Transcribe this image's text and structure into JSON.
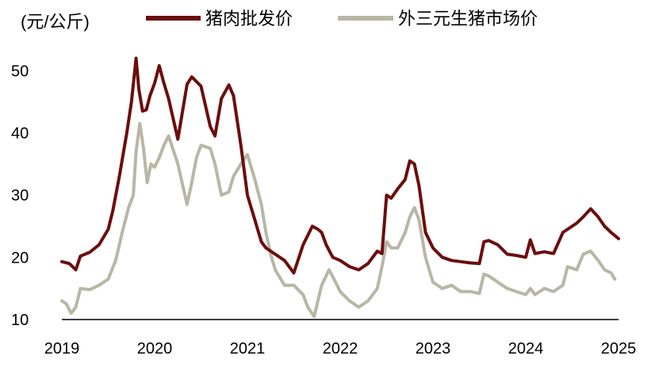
{
  "chart_data": {
    "type": "line",
    "unit_label": "(元/公斤)",
    "ylim": [
      10,
      55
    ],
    "y_ticks": [
      10,
      20,
      30,
      40,
      50
    ],
    "xlim": [
      2019.0,
      2025.0
    ],
    "x_ticks": [
      2019,
      2020,
      2021,
      2022,
      2023,
      2024,
      2025
    ],
    "legend_position": "top",
    "grid": false,
    "series": [
      {
        "name": "猪肉批发价",
        "color": "#6b0e0e",
        "x": [
          2019.0,
          2019.08,
          2019.15,
          2019.2,
          2019.3,
          2019.4,
          2019.5,
          2019.55,
          2019.62,
          2019.66,
          2019.7,
          2019.75,
          2019.8,
          2019.83,
          2019.87,
          2019.91,
          2019.95,
          2020.0,
          2020.05,
          2020.1,
          2020.15,
          2020.25,
          2020.35,
          2020.4,
          2020.5,
          2020.6,
          2020.65,
          2020.72,
          2020.8,
          2020.85,
          2020.93,
          2021.0,
          2021.08,
          2021.15,
          2021.2,
          2021.3,
          2021.4,
          2021.5,
          2021.6,
          2021.7,
          2021.76,
          2021.8,
          2021.85,
          2021.92,
          2022.0,
          2022.1,
          2022.2,
          2022.3,
          2022.4,
          2022.45,
          2022.5,
          2022.55,
          2022.62,
          2022.7,
          2022.75,
          2022.8,
          2022.85,
          2022.92,
          2023.0,
          2023.1,
          2023.2,
          2023.3,
          2023.4,
          2023.5,
          2023.55,
          2023.6,
          2023.7,
          2023.8,
          2023.9,
          2024.0,
          2024.05,
          2024.1,
          2024.2,
          2024.3,
          2024.4,
          2024.5,
          2024.55,
          2024.62,
          2024.7,
          2024.78,
          2024.85,
          2024.92,
          2025.0
        ],
        "values": [
          19.3,
          19,
          18,
          20.2,
          20.8,
          22,
          24.5,
          27.5,
          33,
          36.5,
          40,
          45,
          52,
          47,
          43.5,
          43.7,
          46,
          48,
          50.8,
          48,
          45.5,
          39,
          47.8,
          49,
          47.5,
          41,
          39.5,
          45.5,
          47.7,
          46,
          38,
          30,
          26,
          22.5,
          21.5,
          20.5,
          19.5,
          17.5,
          22,
          25,
          24.5,
          24,
          22,
          20,
          19.5,
          18.5,
          18,
          19,
          21,
          20.6,
          30,
          29.5,
          31,
          32.5,
          35.5,
          35,
          31.5,
          24,
          21.5,
          20,
          19.5,
          19.3,
          19.1,
          19,
          22.5,
          22.7,
          22,
          20.5,
          20.3,
          20,
          22.8,
          20.6,
          20.9,
          20.6,
          24,
          25,
          25.5,
          26.5,
          27.8,
          26.5,
          25,
          24,
          23
        ]
      },
      {
        "name": "外三元生猪市场价",
        "color": "#b8b6a5",
        "x": [
          2019.0,
          2019.05,
          2019.1,
          2019.15,
          2019.2,
          2019.3,
          2019.4,
          2019.5,
          2019.58,
          2019.65,
          2019.72,
          2019.77,
          2019.8,
          2019.84,
          2019.88,
          2019.92,
          2019.96,
          2020.0,
          2020.05,
          2020.1,
          2020.15,
          2020.25,
          2020.35,
          2020.4,
          2020.45,
          2020.5,
          2020.6,
          2020.65,
          2020.72,
          2020.8,
          2020.85,
          2020.93,
          2021.0,
          2021.08,
          2021.15,
          2021.2,
          2021.25,
          2021.3,
          2021.4,
          2021.5,
          2021.6,
          2021.65,
          2021.72,
          2021.8,
          2021.88,
          2021.95,
          2022.0,
          2022.1,
          2022.2,
          2022.3,
          2022.4,
          2022.45,
          2022.5,
          2022.55,
          2022.62,
          2022.7,
          2022.75,
          2022.8,
          2022.85,
          2022.92,
          2023.0,
          2023.1,
          2023.2,
          2023.3,
          2023.4,
          2023.5,
          2023.55,
          2023.6,
          2023.7,
          2023.8,
          2023.9,
          2024.0,
          2024.05,
          2024.1,
          2024.2,
          2024.3,
          2024.4,
          2024.45,
          2024.55,
          2024.62,
          2024.7,
          2024.78,
          2024.85,
          2024.92,
          2024.96
        ],
        "values": [
          13,
          12.5,
          11,
          12,
          15,
          14.8,
          15.5,
          16.5,
          19.5,
          24,
          28,
          30,
          37,
          41.5,
          37.5,
          32,
          35,
          34.5,
          36,
          38,
          39.5,
          35,
          28.5,
          32,
          36,
          38,
          37.5,
          35,
          30,
          30.5,
          33,
          35,
          36.5,
          32.5,
          28.5,
          24,
          20.5,
          18,
          15.5,
          15.5,
          14,
          12,
          10.5,
          15.5,
          18,
          16,
          14.5,
          13,
          12,
          13,
          15,
          18.5,
          22.5,
          21.5,
          21.5,
          24,
          26.5,
          28,
          26,
          20,
          16,
          15,
          15.5,
          14.5,
          14.5,
          14.2,
          17.3,
          17,
          16,
          15,
          14.5,
          14,
          15,
          14,
          15,
          14.5,
          15.5,
          18.5,
          18,
          20.5,
          21,
          19.5,
          18,
          17.5,
          16.5
        ]
      }
    ]
  }
}
